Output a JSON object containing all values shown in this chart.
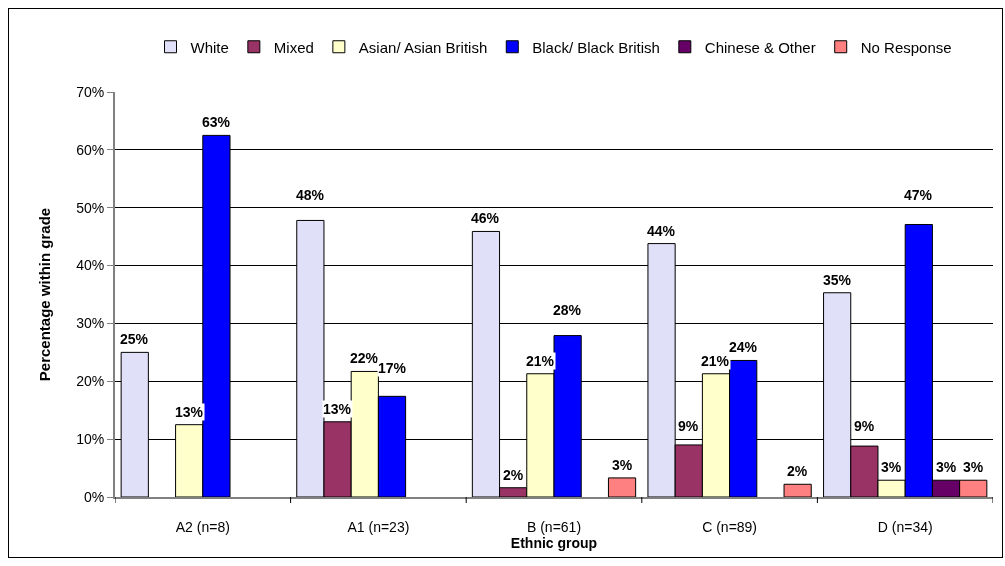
{
  "chart_data": {
    "type": "bar",
    "xlabel": "Ethnic group",
    "ylabel": "Percentage within grade",
    "categories": [
      "A2 (n=8)",
      "A1 (n=23)",
      "B (n=61)",
      "C (n=89)",
      "D (n=34)"
    ],
    "series": [
      {
        "name": "White",
        "color": "#e0e0f8",
        "values": [
          25,
          47.8,
          45.9,
          43.8,
          35.3
        ],
        "value_labels": [
          "25%",
          "48%",
          "46%",
          "44%",
          "35%"
        ]
      },
      {
        "name": "Mixed",
        "color": "#993366",
        "values": [
          null,
          13.0,
          1.6,
          9.0,
          8.8
        ],
        "value_labels": [
          null,
          "13%",
          "2%",
          "9%",
          "9%"
        ]
      },
      {
        "name": "Asian/ Asian British",
        "color": "#ffffcc",
        "values": [
          12.5,
          21.7,
          21.3,
          21.3,
          2.9
        ],
        "value_labels": [
          "13%",
          "22%",
          "21%",
          "21%",
          "3%"
        ]
      },
      {
        "name": "Black/ Black British",
        "color": "#0000ff",
        "values": [
          62.5,
          17.4,
          27.9,
          23.6,
          47.1
        ],
        "value_labels": [
          "63%",
          "17%",
          "28%",
          "24%",
          "47%"
        ]
      },
      {
        "name": "Chinese & Other",
        "color": "#660066",
        "values": [
          null,
          null,
          null,
          null,
          2.9
        ],
        "value_labels": [
          null,
          null,
          null,
          null,
          "3%"
        ]
      },
      {
        "name": "No Response",
        "color": "#ff8080",
        "values": [
          null,
          null,
          3.3,
          2.2,
          2.9
        ],
        "value_labels": [
          null,
          null,
          "3%",
          "2%",
          "3%"
        ]
      }
    ],
    "ylim": [
      0,
      70
    ],
    "yticks": [
      {
        "value": 0,
        "label": "0%"
      },
      {
        "value": 10,
        "label": "10%"
      },
      {
        "value": 20,
        "label": "20%"
      },
      {
        "value": 30,
        "label": "30%"
      },
      {
        "value": 40,
        "label": "40%"
      },
      {
        "value": 50,
        "label": "50%"
      },
      {
        "value": 60,
        "label": "60%"
      },
      {
        "value": 70,
        "label": "70%"
      }
    ],
    "grid": "y",
    "legend": "top"
  }
}
